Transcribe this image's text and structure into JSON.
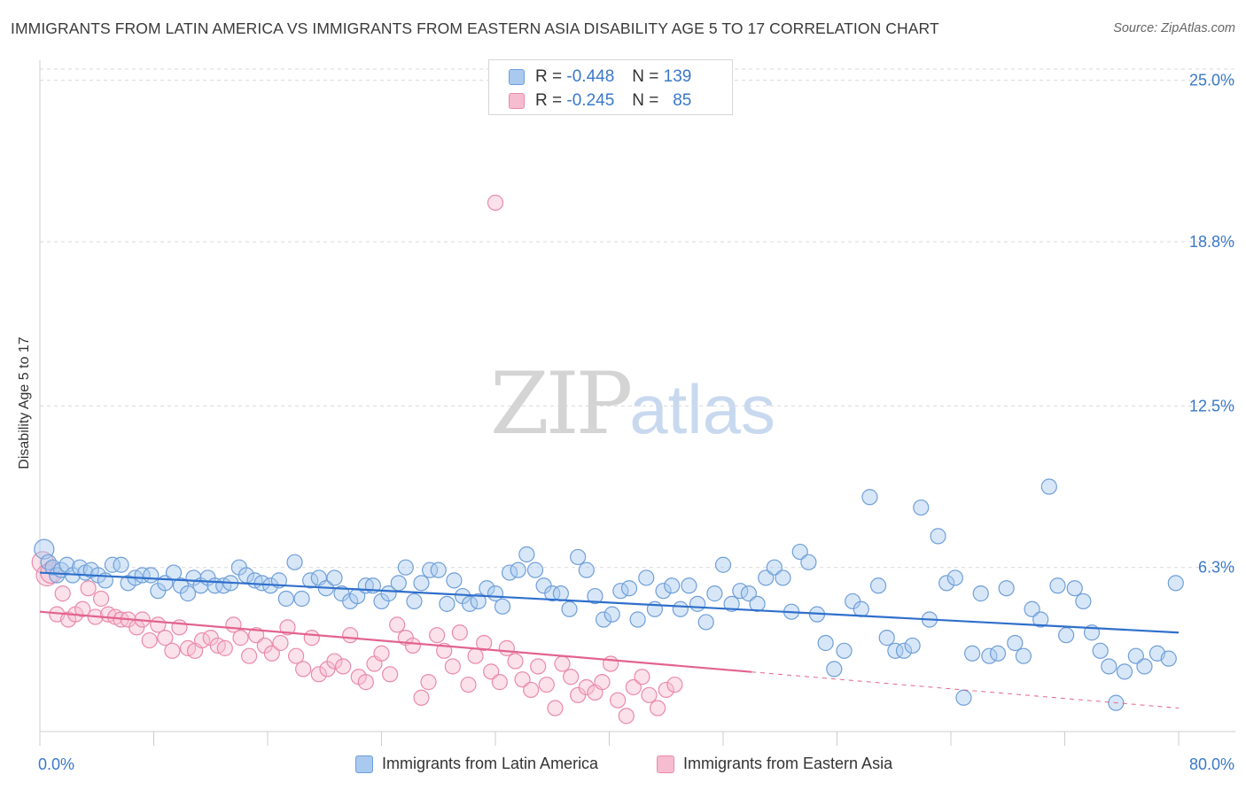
{
  "header": {
    "title": "IMMIGRANTS FROM LATIN AMERICA VS IMMIGRANTS FROM EASTERN ASIA DISABILITY AGE 5 TO 17 CORRELATION CHART",
    "source": "Source: ZipAtlas.com"
  },
  "watermark": {
    "zip": "ZIP",
    "atlas": "atlas"
  },
  "legend_top": {
    "rows": [
      {
        "r_label": "R =",
        "r_value": "-0.448",
        "n_label": "N =",
        "n_value": "139"
      },
      {
        "r_label": "R =",
        "r_value": "-0.245",
        "n_label": "N =",
        "n_value": "85"
      }
    ]
  },
  "colors": {
    "blue_fill": "#a9c9ef",
    "blue_stroke": "#6f9fd8",
    "blue_line": "#2f6fcb",
    "pink_fill": "#f6bcd0",
    "pink_stroke": "#ea8aaa",
    "pink_line": "#e2648e",
    "grid": "#d9d9d9",
    "tick_text": "#3a78c8"
  },
  "chart_data": {
    "type": "scatter",
    "title": "IMMIGRANTS FROM LATIN AMERICA VS IMMIGRANTS FROM EASTERN ASIA DISABILITY AGE 5 TO 17 CORRELATION CHART",
    "xlabel": "",
    "ylabel": "Disability Age 5 to 17",
    "xlim": [
      0,
      80
    ],
    "ylim": [
      0,
      25.6
    ],
    "x_tick_labels": [
      "0.0%",
      "80.0%"
    ],
    "y_ticks": [
      6.3,
      12.5,
      18.8,
      25.0
    ],
    "y_tick_labels": [
      "6.3%",
      "12.5%",
      "18.8%",
      "25.0%"
    ],
    "grid": true,
    "legend_placement": "bottom-center",
    "series": [
      {
        "name": "Immigrants from Latin America",
        "r": -0.448,
        "n": 139,
        "trend": {
          "x": [
            0,
            80
          ],
          "y": [
            6.1,
            3.8
          ]
        },
        "points": [
          [
            0.3,
            7.0
          ],
          [
            0.6,
            6.5
          ],
          [
            0.9,
            6.3
          ],
          [
            1.2,
            6.0
          ],
          [
            1.5,
            6.2
          ],
          [
            1.9,
            6.4
          ],
          [
            2.3,
            6.0
          ],
          [
            2.8,
            6.3
          ],
          [
            3.2,
            6.1
          ],
          [
            3.6,
            6.2
          ],
          [
            4.1,
            6.0
          ],
          [
            4.6,
            5.8
          ],
          [
            5.1,
            6.4
          ],
          [
            5.7,
            6.4
          ],
          [
            6.2,
            5.7
          ],
          [
            6.7,
            5.9
          ],
          [
            7.2,
            6.0
          ],
          [
            7.8,
            6.0
          ],
          [
            8.3,
            5.4
          ],
          [
            8.8,
            5.7
          ],
          [
            9.4,
            6.1
          ],
          [
            9.9,
            5.6
          ],
          [
            10.4,
            5.3
          ],
          [
            10.8,
            5.9
          ],
          [
            11.3,
            5.6
          ],
          [
            11.8,
            5.9
          ],
          [
            12.3,
            5.6
          ],
          [
            12.9,
            5.6
          ],
          [
            13.4,
            5.7
          ],
          [
            14.0,
            6.3
          ],
          [
            14.5,
            6.0
          ],
          [
            15.1,
            5.8
          ],
          [
            15.6,
            5.7
          ],
          [
            16.2,
            5.6
          ],
          [
            16.8,
            5.8
          ],
          [
            17.3,
            5.1
          ],
          [
            17.9,
            6.5
          ],
          [
            18.4,
            5.1
          ],
          [
            19.0,
            5.8
          ],
          [
            19.6,
            5.9
          ],
          [
            20.1,
            5.5
          ],
          [
            20.7,
            5.9
          ],
          [
            21.2,
            5.3
          ],
          [
            21.8,
            5.0
          ],
          [
            22.3,
            5.2
          ],
          [
            22.9,
            5.6
          ],
          [
            23.4,
            5.6
          ],
          [
            24.0,
            5.0
          ],
          [
            24.5,
            5.3
          ],
          [
            25.2,
            5.7
          ],
          [
            25.7,
            6.3
          ],
          [
            26.3,
            5.0
          ],
          [
            26.8,
            5.7
          ],
          [
            27.4,
            6.2
          ],
          [
            28.0,
            6.2
          ],
          [
            28.6,
            4.9
          ],
          [
            29.1,
            5.8
          ],
          [
            29.7,
            5.2
          ],
          [
            30.2,
            4.9
          ],
          [
            30.8,
            5.0
          ],
          [
            31.4,
            5.5
          ],
          [
            32.0,
            5.3
          ],
          [
            32.5,
            4.8
          ],
          [
            33.0,
            6.1
          ],
          [
            33.6,
            6.2
          ],
          [
            34.2,
            6.8
          ],
          [
            34.8,
            6.2
          ],
          [
            35.4,
            5.6
          ],
          [
            36.0,
            5.3
          ],
          [
            36.6,
            5.3
          ],
          [
            37.2,
            4.7
          ],
          [
            37.8,
            6.7
          ],
          [
            38.4,
            6.2
          ],
          [
            39.0,
            5.2
          ],
          [
            39.6,
            4.3
          ],
          [
            40.2,
            4.5
          ],
          [
            40.8,
            5.4
          ],
          [
            41.4,
            5.5
          ],
          [
            42.0,
            4.3
          ],
          [
            42.6,
            5.9
          ],
          [
            43.2,
            4.7
          ],
          [
            43.8,
            5.4
          ],
          [
            44.4,
            5.6
          ],
          [
            45.0,
            4.7
          ],
          [
            45.6,
            5.6
          ],
          [
            46.2,
            4.9
          ],
          [
            46.8,
            4.2
          ],
          [
            47.4,
            5.3
          ],
          [
            48.0,
            6.4
          ],
          [
            48.6,
            4.9
          ],
          [
            49.2,
            5.4
          ],
          [
            49.8,
            5.3
          ],
          [
            50.4,
            4.9
          ],
          [
            51.0,
            5.9
          ],
          [
            51.6,
            6.3
          ],
          [
            52.2,
            5.9
          ],
          [
            52.8,
            4.6
          ],
          [
            53.4,
            6.9
          ],
          [
            54.0,
            6.5
          ],
          [
            54.6,
            4.5
          ],
          [
            55.2,
            3.4
          ],
          [
            55.8,
            2.4
          ],
          [
            56.5,
            3.1
          ],
          [
            57.1,
            5.0
          ],
          [
            57.7,
            4.7
          ],
          [
            58.3,
            9.0
          ],
          [
            58.9,
            5.6
          ],
          [
            59.5,
            3.6
          ],
          [
            60.1,
            3.1
          ],
          [
            60.7,
            3.1
          ],
          [
            61.3,
            3.3
          ],
          [
            61.9,
            8.6
          ],
          [
            62.5,
            4.3
          ],
          [
            63.1,
            7.5
          ],
          [
            63.7,
            5.7
          ],
          [
            64.3,
            5.9
          ],
          [
            64.9,
            1.3
          ],
          [
            65.5,
            3.0
          ],
          [
            66.1,
            5.3
          ],
          [
            66.7,
            2.9
          ],
          [
            67.3,
            3.0
          ],
          [
            67.9,
            5.5
          ],
          [
            68.5,
            3.4
          ],
          [
            69.1,
            2.9
          ],
          [
            69.7,
            4.7
          ],
          [
            70.3,
            4.3
          ],
          [
            70.9,
            9.4
          ],
          [
            71.5,
            5.6
          ],
          [
            72.1,
            3.7
          ],
          [
            72.7,
            5.5
          ],
          [
            73.3,
            5.0
          ],
          [
            73.9,
            3.8
          ],
          [
            74.5,
            3.1
          ],
          [
            75.1,
            2.5
          ],
          [
            75.6,
            1.1
          ],
          [
            76.2,
            2.3
          ],
          [
            77.0,
            2.9
          ],
          [
            77.6,
            2.5
          ],
          [
            78.5,
            3.0
          ],
          [
            79.3,
            2.8
          ],
          [
            79.8,
            5.7
          ]
        ]
      },
      {
        "name": "Immigrants from Eastern Asia",
        "r": -0.245,
        "n": 85,
        "trend": {
          "x": [
            0,
            80
          ],
          "y": [
            4.6,
            0.9
          ]
        },
        "points": [
          [
            0.2,
            6.5
          ],
          [
            0.5,
            6.0
          ],
          [
            0.8,
            6.1
          ],
          [
            1.2,
            4.5
          ],
          [
            1.6,
            5.3
          ],
          [
            2.0,
            4.3
          ],
          [
            2.5,
            4.5
          ],
          [
            3.0,
            4.7
          ],
          [
            3.4,
            5.5
          ],
          [
            3.9,
            4.4
          ],
          [
            4.3,
            5.1
          ],
          [
            4.8,
            4.5
          ],
          [
            5.3,
            4.4
          ],
          [
            5.7,
            4.3
          ],
          [
            6.2,
            4.3
          ],
          [
            6.8,
            4.0
          ],
          [
            7.2,
            4.3
          ],
          [
            7.7,
            3.5
          ],
          [
            8.3,
            4.1
          ],
          [
            8.8,
            3.6
          ],
          [
            9.3,
            3.1
          ],
          [
            9.8,
            4.0
          ],
          [
            10.4,
            3.2
          ],
          [
            10.9,
            3.1
          ],
          [
            11.4,
            3.5
          ],
          [
            12.0,
            3.6
          ],
          [
            12.5,
            3.3
          ],
          [
            13.0,
            3.2
          ],
          [
            13.6,
            4.1
          ],
          [
            14.1,
            3.6
          ],
          [
            14.7,
            2.9
          ],
          [
            15.2,
            3.7
          ],
          [
            15.8,
            3.3
          ],
          [
            16.3,
            3.0
          ],
          [
            16.9,
            3.4
          ],
          [
            17.4,
            4.0
          ],
          [
            18.0,
            2.9
          ],
          [
            18.5,
            2.4
          ],
          [
            19.1,
            3.6
          ],
          [
            19.6,
            2.2
          ],
          [
            20.2,
            2.4
          ],
          [
            20.7,
            2.7
          ],
          [
            21.3,
            2.5
          ],
          [
            21.8,
            3.7
          ],
          [
            22.4,
            2.1
          ],
          [
            22.9,
            1.9
          ],
          [
            23.5,
            2.6
          ],
          [
            24.0,
            3.0
          ],
          [
            24.6,
            2.2
          ],
          [
            25.1,
            4.1
          ],
          [
            25.7,
            3.6
          ],
          [
            26.2,
            3.3
          ],
          [
            26.8,
            1.3
          ],
          [
            27.3,
            1.9
          ],
          [
            27.9,
            3.7
          ],
          [
            28.4,
            3.1
          ],
          [
            29.0,
            2.5
          ],
          [
            29.5,
            3.8
          ],
          [
            30.1,
            1.8
          ],
          [
            30.6,
            2.9
          ],
          [
            31.2,
            3.4
          ],
          [
            31.7,
            2.3
          ],
          [
            32.3,
            1.9
          ],
          [
            32.8,
            3.2
          ],
          [
            33.4,
            2.7
          ],
          [
            33.9,
            2.0
          ],
          [
            34.5,
            1.6
          ],
          [
            35.0,
            2.5
          ],
          [
            35.6,
            1.8
          ],
          [
            36.2,
            0.9
          ],
          [
            36.7,
            2.6
          ],
          [
            37.3,
            2.1
          ],
          [
            37.8,
            1.4
          ],
          [
            38.4,
            1.7
          ],
          [
            39.0,
            1.5
          ],
          [
            39.5,
            1.9
          ],
          [
            40.1,
            2.6
          ],
          [
            40.6,
            1.2
          ],
          [
            41.2,
            0.6
          ],
          [
            41.7,
            1.7
          ],
          [
            42.3,
            2.1
          ],
          [
            42.8,
            1.4
          ],
          [
            43.4,
            0.9
          ],
          [
            44.0,
            1.6
          ],
          [
            44.6,
            1.8
          ]
        ]
      }
    ],
    "outlier_note": ""
  },
  "axis": {
    "x_left_label": "0.0%",
    "x_right_label": "80.0%",
    "ylabel": "Disability Age 5 to 17"
  },
  "legend_bottom": {
    "items": [
      {
        "label": "Immigrants from Latin America"
      },
      {
        "label": "Immigrants from Eastern Asia"
      }
    ]
  }
}
